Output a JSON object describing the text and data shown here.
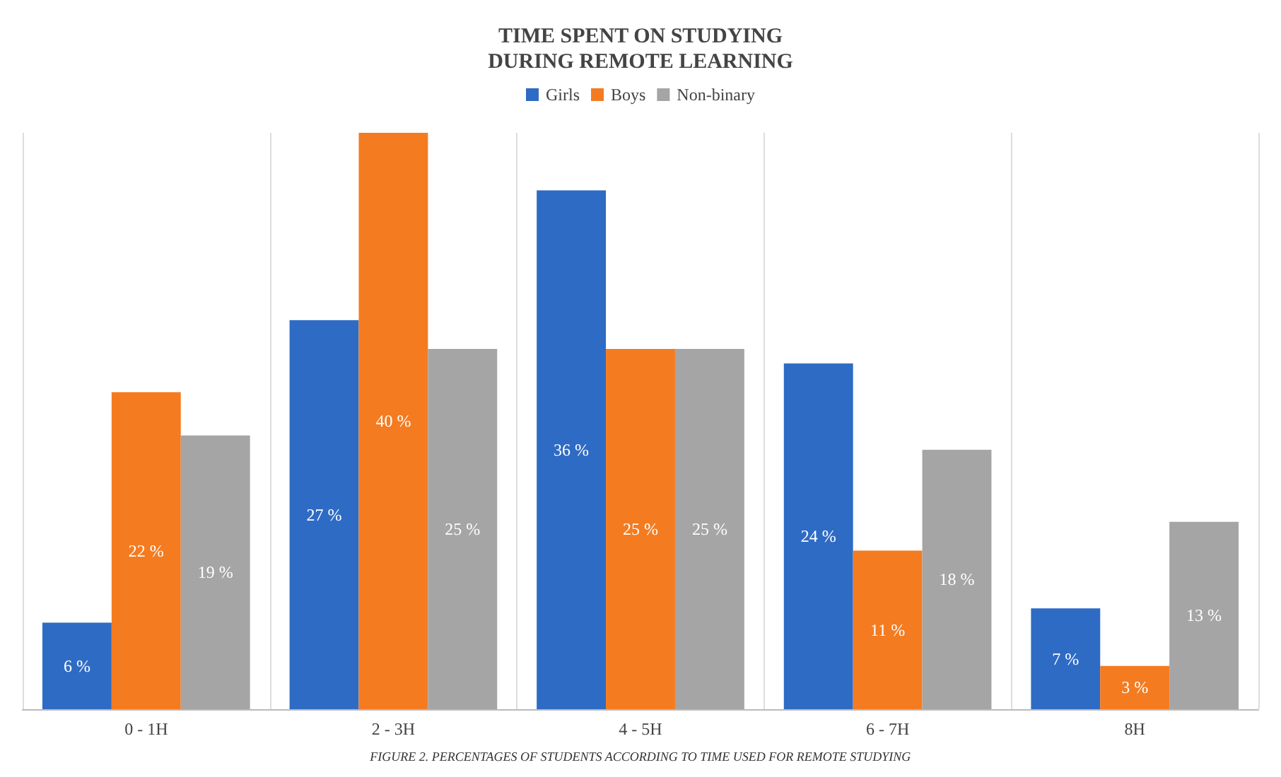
{
  "chart_data": {
    "type": "bar",
    "title": "TIME SPENT ON STUDYING\nDURING REMOTE LEARNING",
    "categories": [
      "0 - 1H",
      "2 - 3H",
      "4 - 5H",
      "6 - 7H",
      "8H"
    ],
    "series": [
      {
        "name": "Girls",
        "color": "#2e6bc4",
        "values": [
          6,
          27,
          36,
          24,
          7
        ],
        "value_labels": [
          "6 %",
          "27 %",
          "36 %",
          "24 %",
          "7 %"
        ]
      },
      {
        "name": "Boys",
        "color": "#f47b20",
        "values": [
          22,
          40,
          25,
          11,
          3
        ],
        "value_labels": [
          "22 %",
          "40 %",
          "25 %",
          "11 %",
          "3 %"
        ]
      },
      {
        "name": "Non-binary",
        "color": "#a5a5a5",
        "values": [
          19,
          25,
          25,
          18,
          13
        ],
        "value_labels": [
          "19 %",
          "25 %",
          "25 %",
          "18 %",
          "13 %"
        ]
      }
    ],
    "legend": "top",
    "grid": "x",
    "tick_labels": "x",
    "annotations": [
      "FIGURE 2. PERCENTAGES OF STUDENTS ACCORDING TO TIME USED FOR REMOTE STUDYING"
    ]
  }
}
